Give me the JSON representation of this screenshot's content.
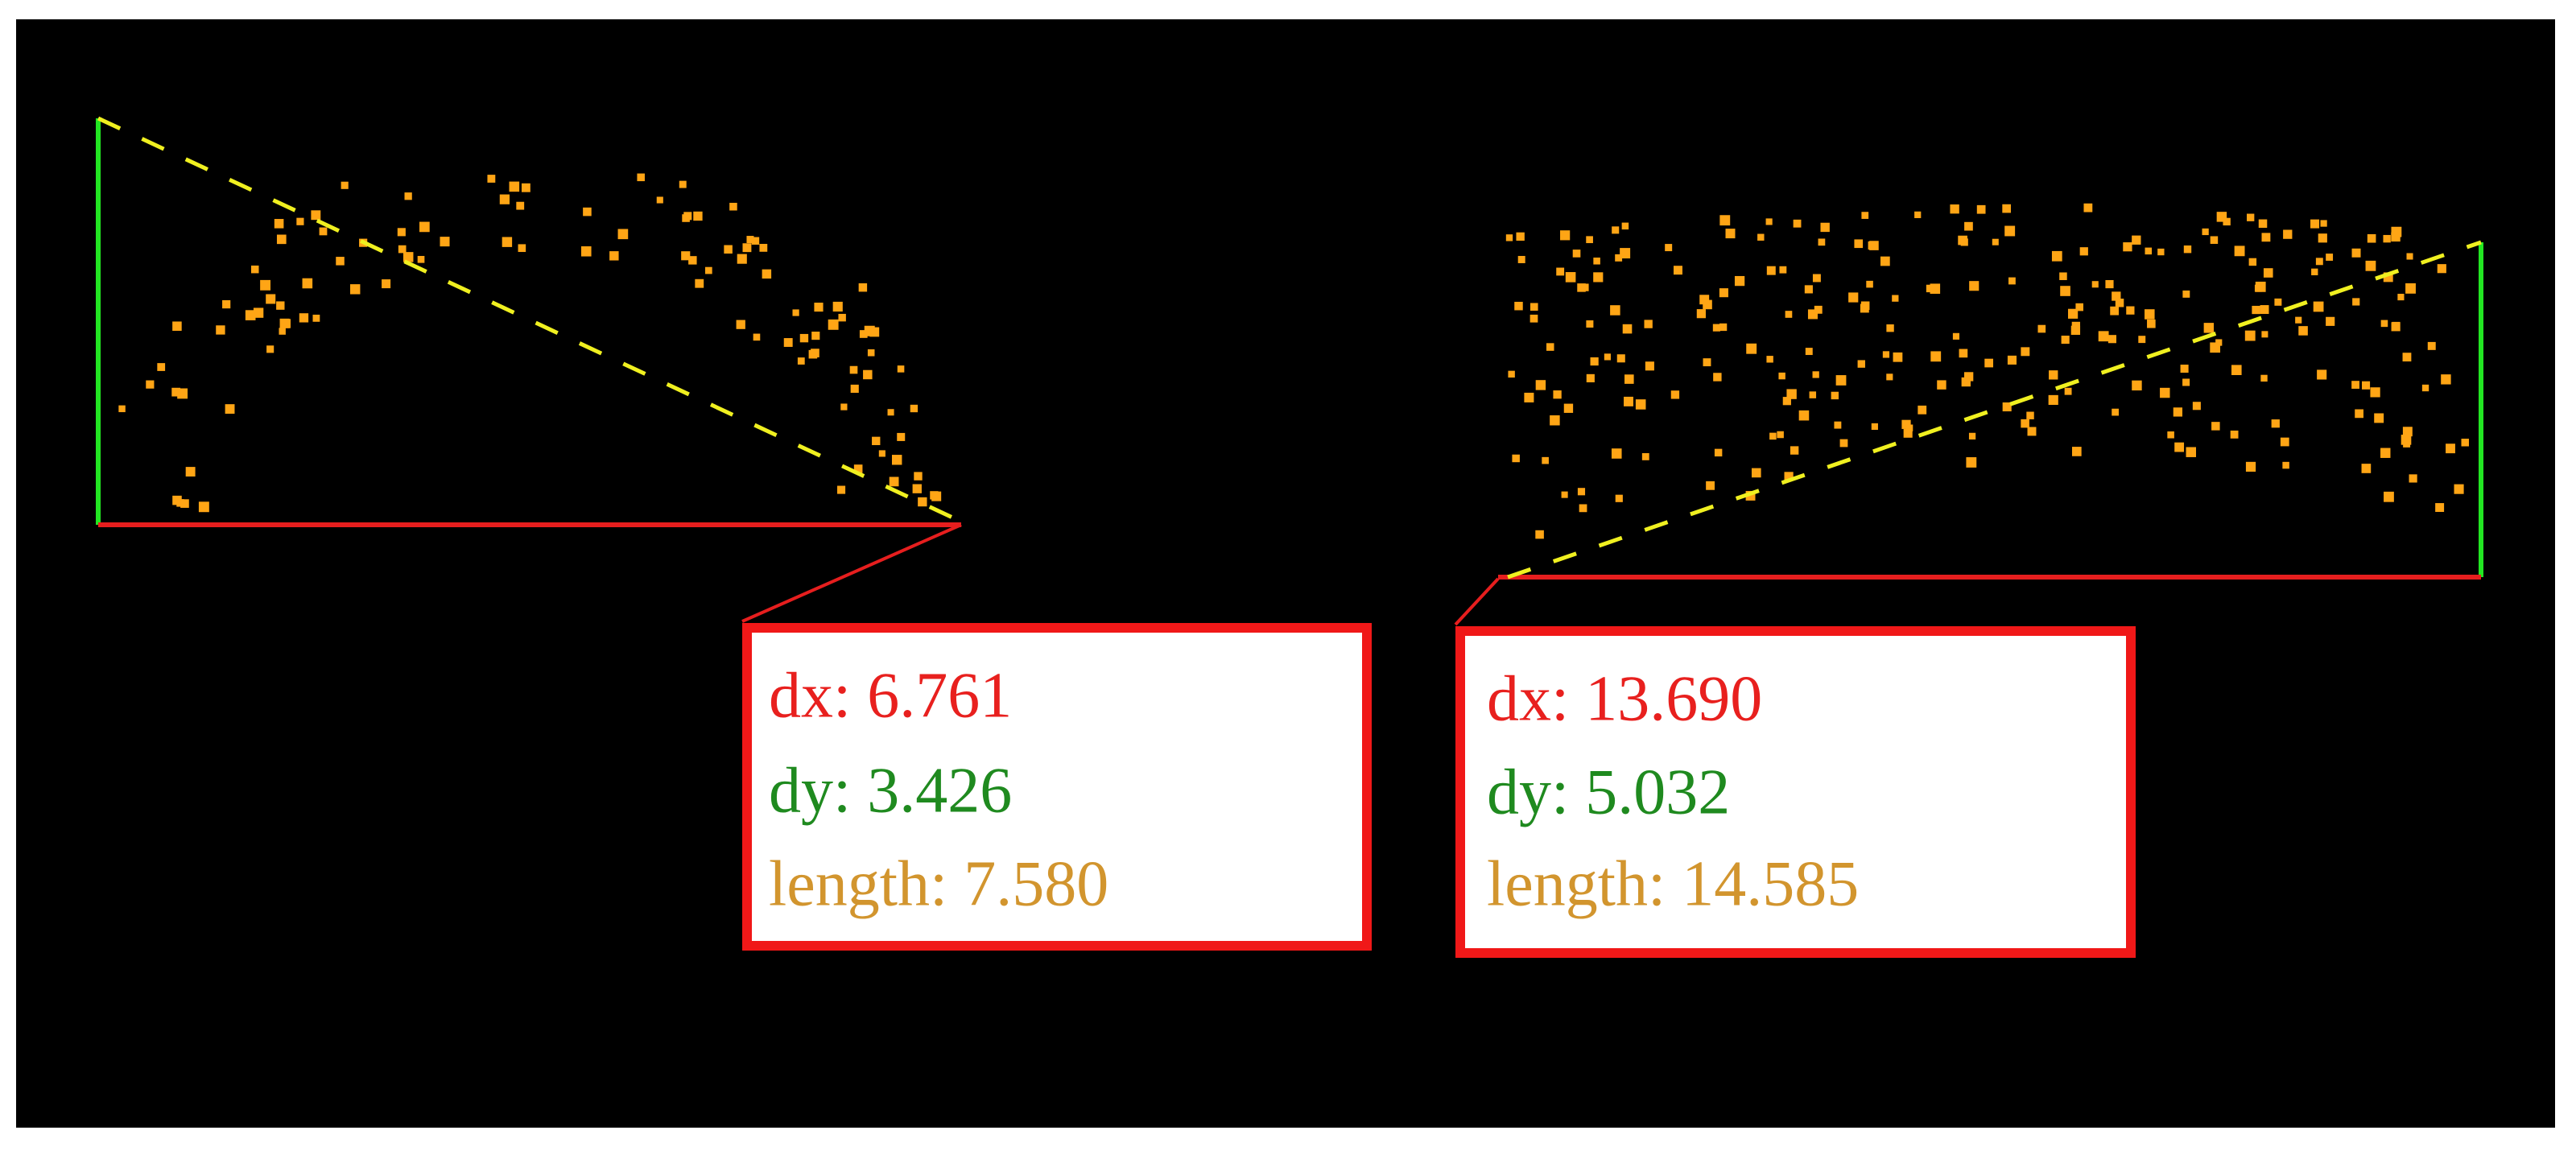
{
  "panels": [
    {
      "lines": [
        "dx: 6.761",
        "dy: 3.426",
        "length: 7.580"
      ]
    },
    {
      "lines": [
        "dx: 13.690",
        "dy: 5.032",
        "length: 14.585"
      ]
    }
  ]
}
